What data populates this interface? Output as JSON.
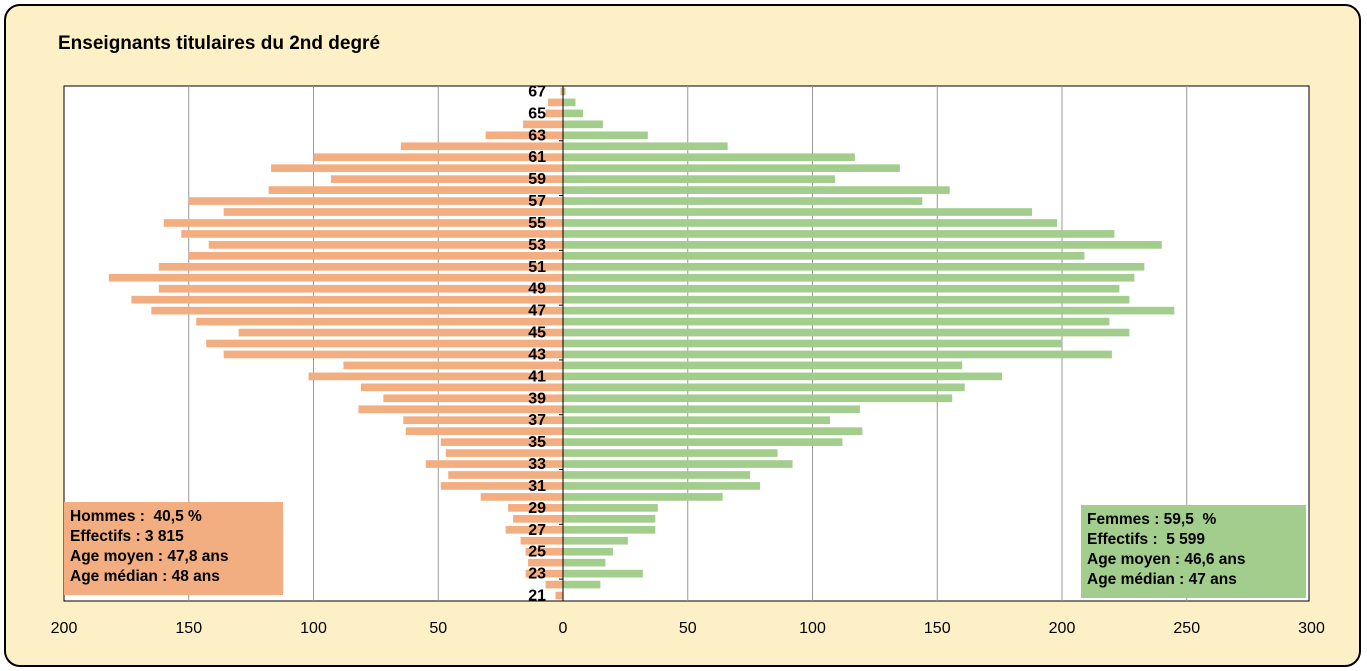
{
  "title": "Enseignants titulaires du 2nd degré",
  "hommes_box": {
    "line1": "Hommes :  40,5 %",
    "line2": "Effectifs : 3 815",
    "line3": "Age moyen : 47,8 ans",
    "line4": "Age médian : 48 ans"
  },
  "femmes_box": {
    "line1": "Femmes : 59,5  %",
    "line2": "Effectifs :  5 599",
    "line3": "Age moyen : 46,6 ans",
    "line4": "Age médian : 47 ans"
  },
  "colors": {
    "hommes": "#f2ae80",
    "femmes": "#a2cd8d",
    "background": "#fdf0c6",
    "plot": "#ffffff",
    "grid": "#999999"
  },
  "chart_data": {
    "type": "bar",
    "orientation": "horizontal",
    "title": "Enseignants titulaires du 2nd degré",
    "ages": [
      67,
      66,
      65,
      64,
      63,
      62,
      61,
      60,
      59,
      58,
      57,
      56,
      55,
      54,
      53,
      52,
      51,
      50,
      49,
      48,
      47,
      46,
      45,
      44,
      43,
      42,
      41,
      40,
      39,
      38,
      37,
      36,
      35,
      34,
      33,
      32,
      31,
      30,
      29,
      28,
      27,
      26,
      25,
      24,
      23,
      22,
      21
    ],
    "age_labels": [
      "67",
      "65",
      "63",
      "61",
      "59",
      "57",
      "55",
      "53",
      "51",
      "49",
      "47",
      "45",
      "43",
      "41",
      "39",
      "37",
      "35",
      "33",
      "31",
      "29",
      "27",
      "25",
      "23",
      "21"
    ],
    "series": [
      {
        "name": "Hommes",
        "side": "left",
        "values": [
          1,
          6,
          7,
          16,
          31,
          65,
          100,
          117,
          93,
          118,
          150,
          136,
          160,
          153,
          142,
          150,
          162,
          182,
          162,
          173,
          165,
          147,
          130,
          143,
          136,
          88,
          102,
          81,
          72,
          82,
          64,
          63,
          49,
          47,
          55,
          46,
          49,
          33,
          22,
          20,
          23,
          17,
          15,
          14,
          15,
          7,
          3
        ]
      },
      {
        "name": "Femmes",
        "side": "right",
        "values": [
          1,
          5,
          8,
          16,
          34,
          66,
          117,
          135,
          109,
          155,
          144,
          188,
          198,
          221,
          240,
          209,
          233,
          229,
          223,
          227,
          245,
          219,
          227,
          200,
          220,
          160,
          176,
          161,
          156,
          119,
          107,
          120,
          112,
          86,
          92,
          75,
          79,
          64,
          38,
          37,
          37,
          26,
          20,
          17,
          32,
          15,
          0
        ]
      }
    ],
    "x_ticks_left": [
      200,
      150,
      100,
      50,
      0
    ],
    "x_ticks_right": [
      50,
      100,
      150,
      200,
      250,
      300
    ],
    "xlim": [
      -200,
      300
    ],
    "grid": true
  }
}
